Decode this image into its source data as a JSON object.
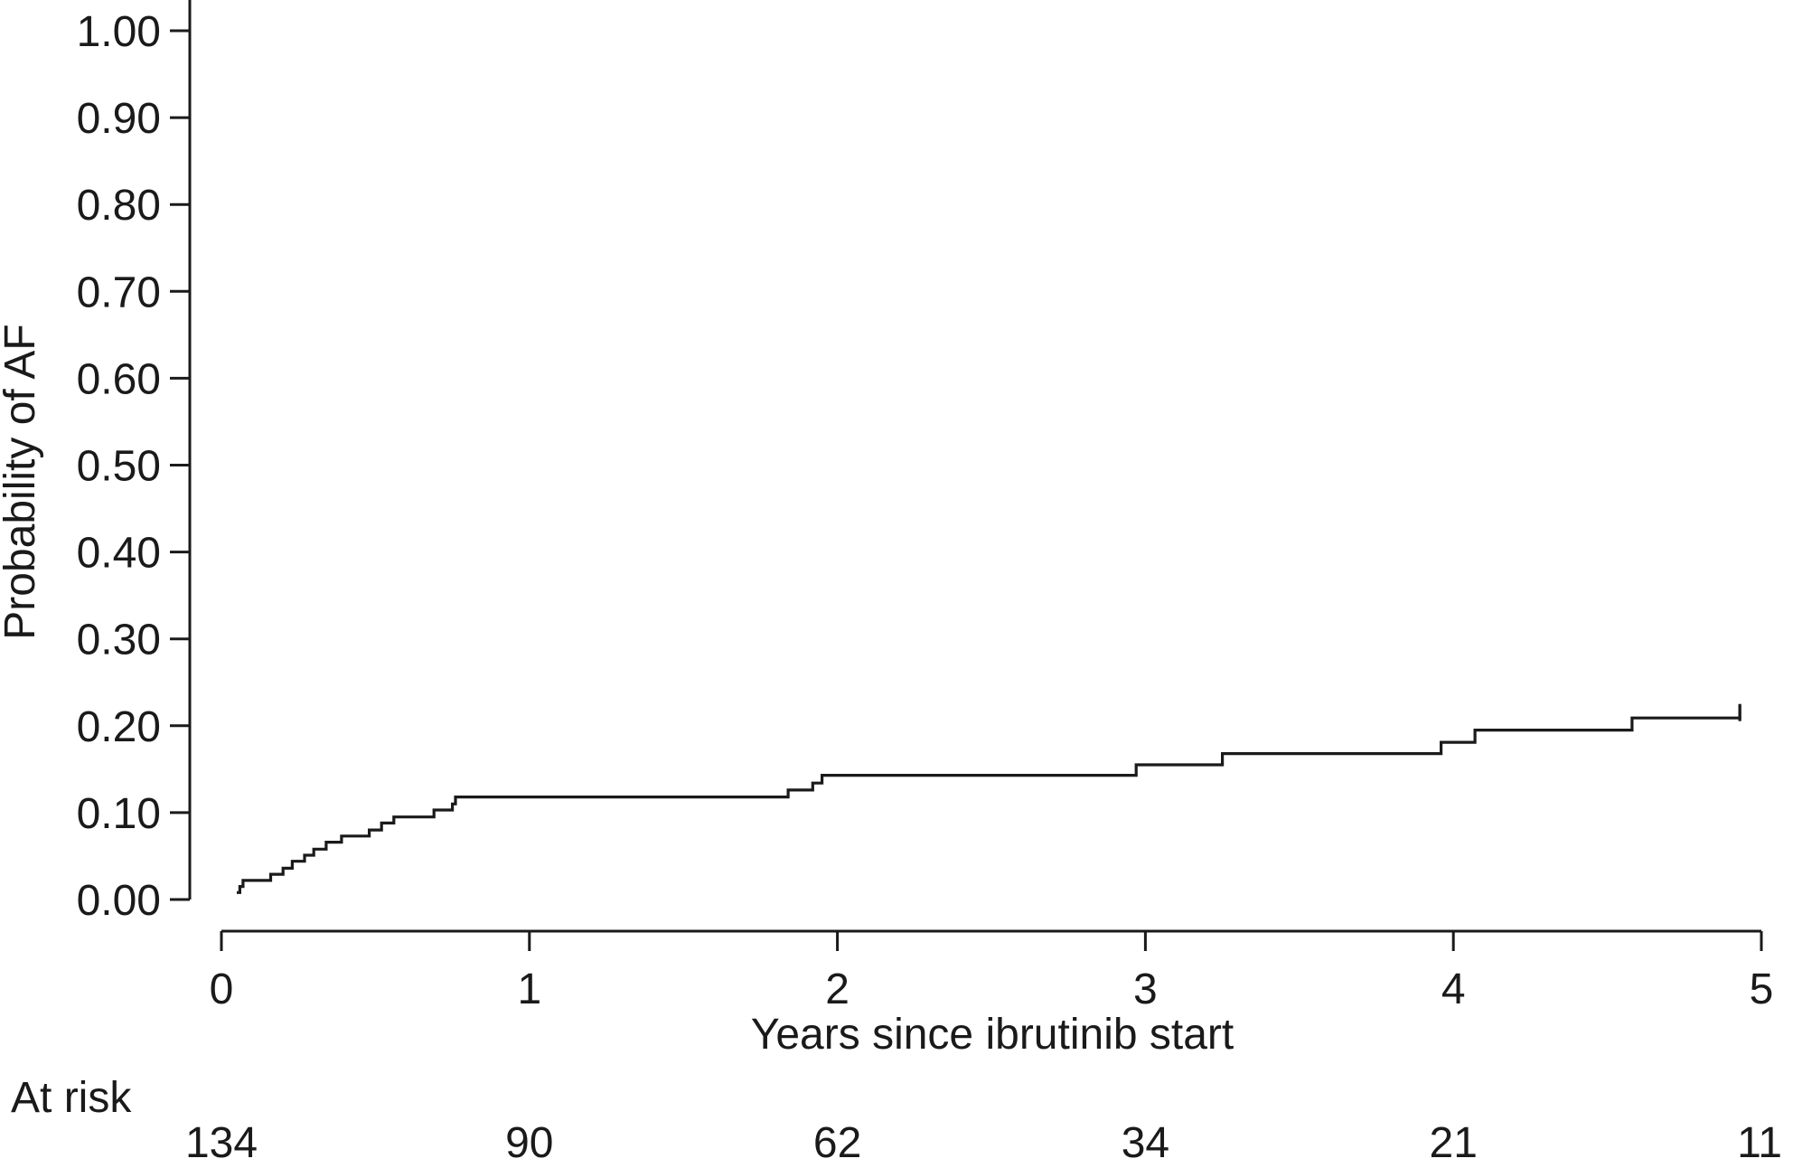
{
  "chart_data": {
    "type": "line",
    "title": "",
    "xlabel": "Years since ibrutinib start",
    "ylabel": "Probability of AF",
    "xlim": [
      0,
      5
    ],
    "ylim": [
      0,
      1
    ],
    "grid": false,
    "x_ticks": [
      0,
      1,
      2,
      3,
      4,
      5
    ],
    "x_tick_labels": [
      "0",
      "1",
      "2",
      "3",
      "4",
      "5"
    ],
    "y_ticks": [
      0,
      0.1,
      0.2,
      0.3,
      0.4,
      0.5,
      0.6,
      0.7,
      0.8,
      0.9,
      1.0
    ],
    "y_tick_labels": [
      "0.00",
      "0.10",
      "0.20",
      "0.30",
      "0.40",
      "0.50",
      "0.60",
      "0.70",
      "0.80",
      "0.90",
      "1.00"
    ],
    "series": [
      {
        "step": true,
        "color": "#1a1a1a",
        "x": [
          0.05,
          0.06,
          0.07,
          0.16,
          0.2,
          0.23,
          0.27,
          0.3,
          0.34,
          0.39,
          0.48,
          0.52,
          0.56,
          0.69,
          0.75,
          0.76,
          1.84,
          1.92,
          1.95,
          2.97,
          3.25,
          3.96,
          4.07,
          4.58,
          4.93
        ],
        "y": [
          0.008,
          0.015,
          0.022,
          0.029,
          0.036,
          0.044,
          0.051,
          0.058,
          0.066,
          0.073,
          0.08,
          0.088,
          0.095,
          0.103,
          0.11,
          0.118,
          0.126,
          0.134,
          0.143,
          0.155,
          0.168,
          0.181,
          0.195,
          0.209,
          0.223
        ]
      }
    ],
    "at_risk": {
      "label": "At risk",
      "times": [
        0,
        1,
        2,
        3,
        4,
        5
      ],
      "values": [
        "134",
        "90",
        "62",
        "34",
        "21",
        "11"
      ]
    }
  }
}
